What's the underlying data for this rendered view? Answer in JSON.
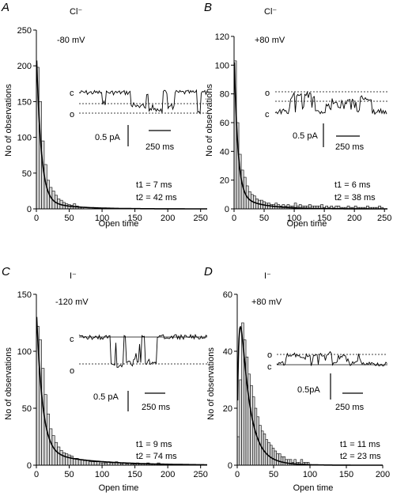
{
  "chart_data": [
    {
      "type": "bar",
      "panel_label": "A",
      "ion": "Cl⁻",
      "voltage": "-80 mV",
      "xlabel": "Open time",
      "ylabel": "No of observations",
      "xlim": [
        0,
        260
      ],
      "ylim": [
        0,
        250
      ],
      "xticks": [
        "0",
        "50",
        "100",
        "150",
        "200",
        "250"
      ],
      "yticks": [
        "0",
        "50",
        "100",
        "150",
        "200",
        "250"
      ],
      "bin_width": 4,
      "x": [
        2,
        6,
        10,
        14,
        18,
        22,
        26,
        30,
        34,
        38,
        42,
        46,
        50,
        54,
        58,
        62,
        66,
        70
      ],
      "values": [
        198,
        150,
        95,
        62,
        40,
        30,
        25,
        19,
        14,
        12,
        9,
        7,
        6,
        5,
        7,
        4,
        3,
        2
      ],
      "fit": {
        "a1": 210,
        "tau1": 7,
        "a2": 12,
        "tau2": 42
      },
      "fit_labels": [
        "t1 = 7 ms",
        "t2 = 42 ms"
      ],
      "trace": {
        "closed_label": "c",
        "open_label": "o",
        "scale_current": "0.5 pA",
        "scale_time": "250 ms"
      }
    },
    {
      "type": "bar",
      "panel_label": "B",
      "ion": "Cl⁻",
      "voltage": "+80 mV",
      "xlabel": "Open time",
      "ylabel": "No of observations",
      "xlim": [
        0,
        255
      ],
      "ylim": [
        0,
        120
      ],
      "xticks": [
        "0",
        "50",
        "100",
        "150",
        "200",
        "250"
      ],
      "yticks": [
        "0",
        "20",
        "40",
        "60",
        "80",
        "100",
        "120"
      ],
      "bin_width": 4,
      "x": [
        2,
        6,
        10,
        14,
        18,
        22,
        26,
        30,
        34,
        38,
        42,
        46,
        50,
        54,
        58,
        62,
        66,
        70,
        74,
        78,
        82,
        86,
        90,
        94,
        98,
        102,
        106,
        110,
        114,
        118,
        122,
        126,
        130,
        134,
        138,
        142,
        146,
        150,
        154,
        158,
        162,
        166,
        170,
        174,
        178,
        182,
        186,
        190,
        194,
        198,
        202,
        206,
        210,
        214,
        218,
        222,
        226,
        230,
        234,
        238,
        242,
        246
      ],
      "values": [
        103,
        60,
        38,
        27,
        22,
        16,
        12,
        10,
        9,
        7,
        6,
        6,
        5,
        4,
        4,
        3,
        3,
        4,
        3,
        2,
        3,
        2,
        3,
        2,
        2,
        4,
        2,
        3,
        2,
        2,
        2,
        3,
        2,
        2,
        2,
        2,
        3,
        1,
        2,
        1,
        2,
        1,
        2,
        2,
        1,
        1,
        1,
        2,
        1,
        1,
        2,
        1,
        1,
        1,
        1,
        2,
        1,
        1,
        1,
        1,
        2,
        1
      ],
      "fit": {
        "a1": 100,
        "tau1": 6,
        "a2": 10,
        "tau2": 38
      },
      "fit_labels": [
        "t1 = 6 ms",
        "t2 = 38 ms"
      ],
      "trace": {
        "closed_label": "c",
        "open_label": "o",
        "scale_current": "0.5 pA",
        "scale_time": "250 ms"
      }
    },
    {
      "type": "bar",
      "panel_label": "C",
      "ion": "I⁻",
      "voltage": "-120 mV",
      "xlabel": "Open time",
      "ylabel": "No of observations",
      "xlim": [
        0,
        260
      ],
      "ylim": [
        0,
        150
      ],
      "xticks": [
        "0",
        "50",
        "100",
        "150",
        "200",
        "250"
      ],
      "yticks": [
        "0",
        "50",
        "100",
        "150"
      ],
      "bin_width": 4,
      "x": [
        2,
        6,
        10,
        14,
        18,
        22,
        26,
        30,
        34,
        38,
        42,
        46,
        50,
        54,
        58,
        62,
        66,
        70,
        74,
        78,
        82,
        86,
        90,
        94,
        98,
        102,
        106,
        110,
        114,
        118,
        122,
        126,
        130,
        134,
        138,
        142,
        146,
        150,
        154,
        158,
        162,
        166,
        170,
        174,
        178,
        182,
        186,
        190
      ],
      "values": [
        122,
        110,
        85,
        62,
        45,
        32,
        26,
        20,
        16,
        13,
        11,
        10,
        9,
        8,
        6,
        6,
        5,
        5,
        4,
        4,
        3,
        3,
        3,
        3,
        2,
        2,
        2,
        3,
        2,
        2,
        3,
        2,
        1,
        2,
        1,
        2,
        1,
        1,
        2,
        1,
        1,
        1,
        2,
        1,
        1,
        1,
        2,
        1
      ],
      "fit": {
        "a1": 125,
        "tau1": 9,
        "a2": 12,
        "tau2": 74
      },
      "fit_labels": [
        "t1 = 9 ms",
        "t2 = 74 ms"
      ],
      "trace": {
        "closed_label": "c",
        "open_label": "o",
        "scale_current": "0.5 pA",
        "scale_time": "250 ms"
      }
    },
    {
      "type": "bar",
      "panel_label": "D",
      "ion": "I⁻",
      "voltage": "+80 mV",
      "xlabel": "Open time",
      "ylabel": "No of observations",
      "xlim": [
        0,
        200
      ],
      "ylim": [
        0,
        60
      ],
      "xticks": [
        "0",
        "50",
        "100",
        "150",
        "200"
      ],
      "yticks": [
        "0",
        "20",
        "40",
        "60"
      ],
      "bin_width": 3,
      "x": [
        1.5,
        4.5,
        7.5,
        10.5,
        13.5,
        16.5,
        19.5,
        22.5,
        25.5,
        28.5,
        31.5,
        34.5,
        37.5,
        40.5,
        43.5,
        46.5,
        49.5,
        52.5,
        55.5,
        58.5,
        61.5,
        64.5,
        67.5,
        70.5,
        73.5,
        76.5,
        79.5,
        82.5,
        85.5,
        88.5,
        91.5,
        94.5,
        97.5
      ],
      "values": [
        10,
        30,
        50,
        44,
        38,
        32,
        28,
        24,
        20,
        17,
        14,
        12,
        11,
        9,
        8,
        7,
        6,
        5,
        4,
        4,
        3,
        3,
        2,
        2,
        2,
        1,
        2,
        1,
        1,
        2,
        1,
        1,
        1
      ],
      "fit": {
        "rise_tau": 3,
        "a": 75,
        "tau1": 11,
        "a2": 12,
        "tau2": 23
      },
      "fit_labels": [
        "t1 = 11 ms",
        "t2 = 23 ms"
      ],
      "trace": {
        "closed_label": "c",
        "open_label": "o",
        "scale_current": "0.5pA",
        "scale_time": "250 ms"
      }
    }
  ]
}
